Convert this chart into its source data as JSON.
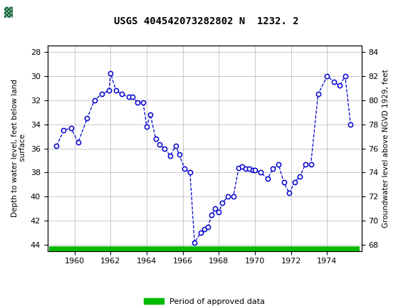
{
  "title": "USGS 404542073282802 N  1232. 2",
  "ylabel_left": "Depth to water level, feet below land\n surface",
  "ylabel_right": "Groundwater level above NGVD 1929, feet",
  "header_color": "#1a6b3c",
  "line_color": "#0000cc",
  "legend_label": "Period of approved data",
  "legend_color": "#00bb00",
  "ylim_left": [
    44.5,
    27.5
  ],
  "ylim_right": [
    67.5,
    84.5
  ],
  "xlim": [
    1958.5,
    1975.9
  ],
  "yticks_left": [
    28,
    30,
    32,
    34,
    36,
    38,
    40,
    42,
    44
  ],
  "yticks_right": [
    68,
    70,
    72,
    74,
    76,
    78,
    80,
    82,
    84
  ],
  "xticks": [
    1960,
    1962,
    1964,
    1966,
    1968,
    1970,
    1972,
    1974
  ],
  "years": [
    1959.0,
    1959.4,
    1959.8,
    1960.2,
    1960.7,
    1961.1,
    1961.5,
    1961.9,
    1962.0,
    1962.3,
    1962.6,
    1963.0,
    1963.2,
    1963.5,
    1963.8,
    1964.0,
    1964.2,
    1964.5,
    1964.7,
    1965.0,
    1965.3,
    1965.6,
    1965.8,
    1966.1,
    1966.4,
    1966.65,
    1967.0,
    1967.2,
    1967.4,
    1967.6,
    1967.8,
    1968.0,
    1968.2,
    1968.5,
    1968.8,
    1969.1,
    1969.3,
    1969.5,
    1969.7,
    1969.9,
    1970.0,
    1970.3,
    1970.7,
    1971.0,
    1971.3,
    1971.6,
    1971.9,
    1972.2,
    1972.5,
    1972.8,
    1973.1,
    1973.5,
    1974.0,
    1974.4,
    1974.7,
    1975.0,
    1975.3
  ],
  "depths": [
    35.8,
    34.5,
    34.3,
    35.5,
    33.5,
    32.0,
    31.5,
    31.2,
    29.8,
    31.2,
    31.5,
    31.7,
    31.7,
    32.2,
    32.2,
    34.2,
    33.2,
    35.2,
    35.7,
    36.0,
    36.6,
    35.8,
    36.5,
    37.7,
    38.0,
    43.8,
    43.0,
    42.7,
    42.5,
    41.5,
    41.0,
    41.3,
    40.5,
    40.0,
    40.0,
    37.6,
    37.5,
    37.7,
    37.7,
    37.8,
    37.8,
    38.0,
    38.5,
    37.7,
    37.3,
    38.8,
    39.7,
    38.8,
    38.3,
    37.3,
    37.3,
    31.5,
    30.0,
    30.5,
    30.8,
    30.0,
    34.0
  ]
}
